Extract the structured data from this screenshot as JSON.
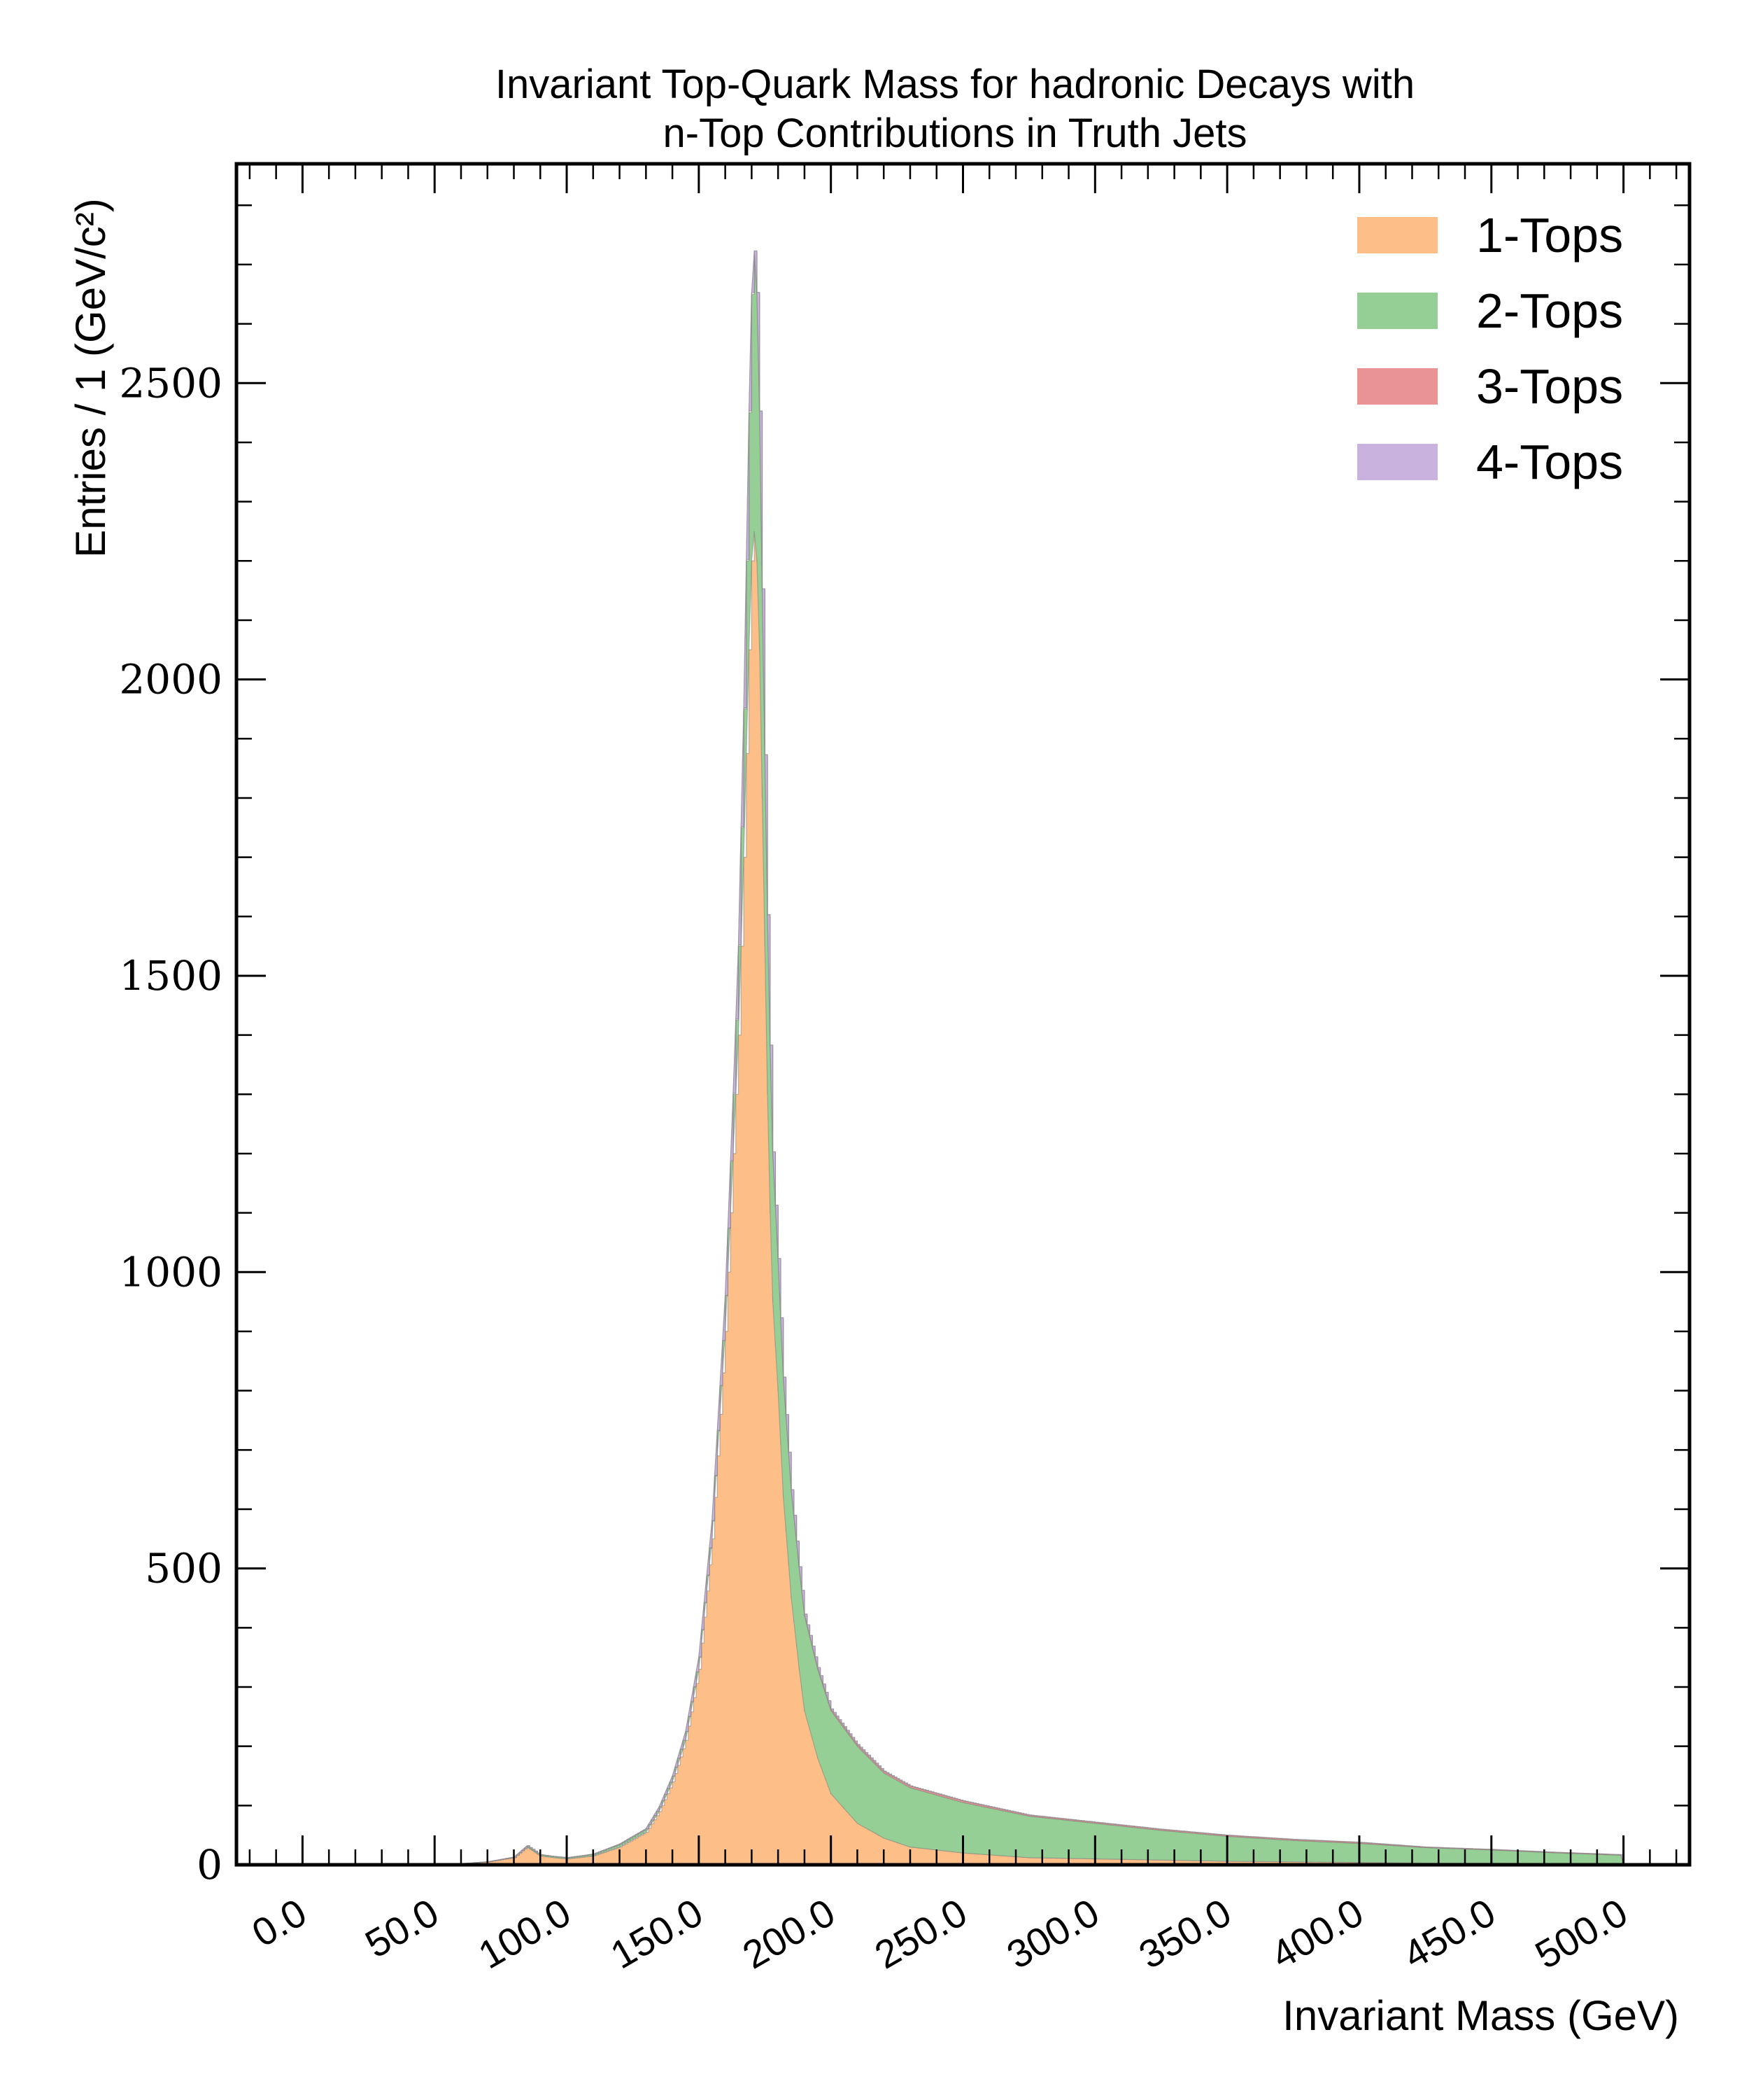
{
  "chart_data": {
    "type": "bar",
    "stacked": true,
    "histogram": true,
    "title_lines": [
      "Invariant Top-Quark Mass for hadronic Decays with",
      "n-Top Contributions in Truth Jets"
    ],
    "xlabel": "Invariant Mass (GeV)",
    "ylabel": "Entries / 1 (GeV/c²)",
    "xlim": [
      -25,
      525
    ],
    "ylim": [
      0,
      2870
    ],
    "x_ticks": [
      0,
      50,
      100,
      150,
      200,
      250,
      300,
      350,
      400,
      450,
      500
    ],
    "x_tick_labels": [
      "0.0",
      "50.0",
      "100.0",
      "150.0",
      "200.0",
      "250.0",
      "300.0",
      "350.0",
      "400.0",
      "450.0",
      "500.0"
    ],
    "y_ticks": [
      0,
      500,
      1000,
      1500,
      2000,
      2500
    ],
    "y_tick_labels": [
      "0",
      "500",
      "1000",
      "1500",
      "2000",
      "2500"
    ],
    "grid": false,
    "legend_position": "top-right",
    "x": [
      60,
      70,
      80,
      85,
      90,
      95,
      100,
      110,
      120,
      130,
      135,
      140,
      145,
      150,
      155,
      160,
      163,
      165,
      167,
      169,
      170,
      171,
      172,
      173,
      174,
      175,
      176,
      177,
      178,
      180,
      182,
      185,
      188,
      190,
      195,
      200,
      210,
      220,
      230,
      250,
      275,
      300,
      325,
      350,
      375,
      400,
      425,
      450,
      475,
      500
    ],
    "series": [
      {
        "name": "1-Tops",
        "color": "#fdbf87",
        "values": [
          2,
          5,
          12,
          30,
          15,
          12,
          10,
          15,
          30,
          55,
          90,
          140,
          210,
          330,
          550,
          900,
          1200,
          1400,
          1700,
          2050,
          2200,
          2250,
          2200,
          2050,
          1800,
          1550,
          1300,
          1100,
          950,
          800,
          620,
          450,
          330,
          260,
          180,
          120,
          70,
          45,
          30,
          20,
          12,
          10,
          8,
          6,
          5,
          4,
          3,
          3,
          2,
          2
        ]
      },
      {
        "name": "2-Tops",
        "color": "#95cf95",
        "values": [
          0,
          0,
          1,
          2,
          2,
          2,
          2,
          3,
          5,
          6,
          8,
          10,
          15,
          20,
          30,
          60,
          100,
          150,
          250,
          400,
          450,
          470,
          450,
          400,
          350,
          320,
          300,
          280,
          250,
          220,
          200,
          180,
          170,
          160,
          150,
          140,
          130,
          110,
          100,
          85,
          70,
          60,
          50,
          42,
          36,
          32,
          26,
          22,
          18,
          14
        ]
      },
      {
        "name": "3-Tops",
        "color": "#ea9394",
        "values": [
          0,
          0,
          0,
          0,
          0,
          0,
          0,
          0,
          0,
          0,
          0,
          0,
          0,
          1,
          1,
          1,
          2,
          2,
          2,
          3,
          3,
          3,
          3,
          3,
          3,
          3,
          3,
          3,
          3,
          3,
          3,
          3,
          3,
          3,
          3,
          3,
          3,
          3,
          3,
          3,
          2,
          2,
          2,
          2,
          2,
          2,
          1,
          1,
          1,
          1
        ]
      },
      {
        "name": "4-Tops",
        "color": "#c9b2de",
        "values": [
          0,
          0,
          0,
          0,
          0,
          0,
          0,
          0,
          0,
          0,
          0,
          0,
          0,
          0,
          0,
          0,
          0,
          0,
          0,
          0,
          0,
          0,
          0,
          0,
          0,
          0,
          0,
          0,
          0,
          0,
          0,
          0,
          0,
          0,
          0,
          0,
          0,
          0,
          0,
          0,
          0,
          0,
          0,
          0,
          0,
          0,
          0,
          0,
          0,
          0
        ]
      }
    ]
  }
}
